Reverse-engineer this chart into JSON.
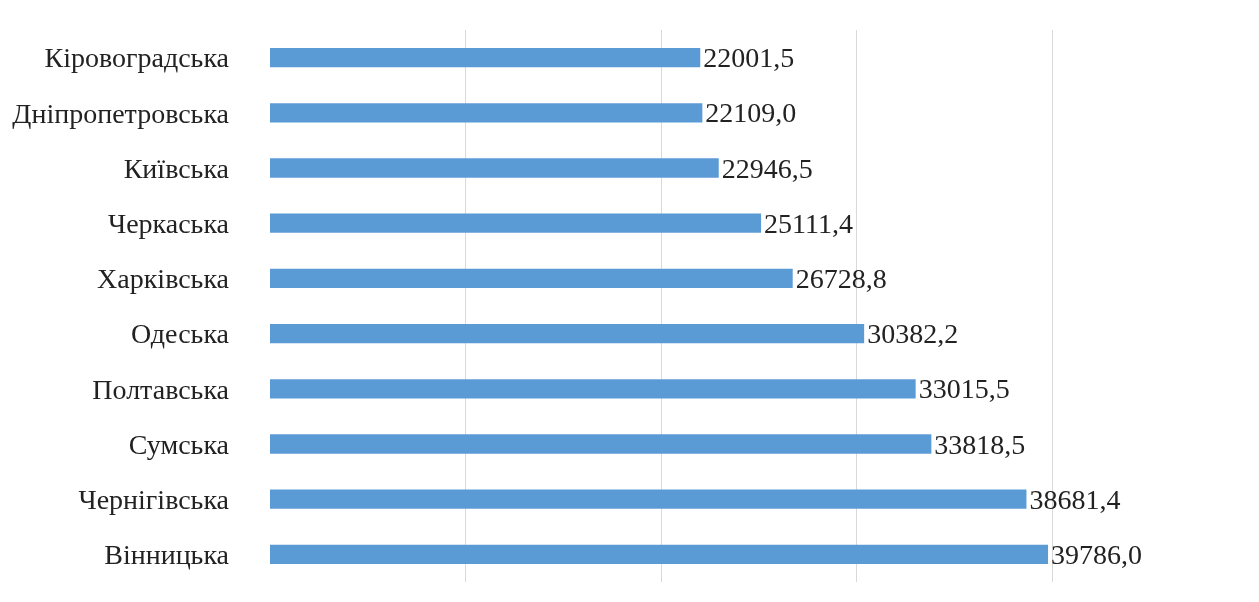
{
  "chart_data": {
    "type": "bar",
    "orientation": "horizontal",
    "categories": [
      "Кіровоградська",
      "Дніпропетровська",
      "Київська",
      "Черкаська",
      "Харківська",
      "Одеська",
      "Полтавська",
      "Сумська",
      "Чернігівська",
      "Вінницька"
    ],
    "values": [
      22001.5,
      22109.0,
      22946.5,
      25111.4,
      26728.8,
      30382.2,
      33015.5,
      33818.5,
      38681.4,
      39786.0
    ],
    "value_labels": [
      "22001,5",
      "22109,0",
      "22946,5",
      "25111,4",
      "26728,8",
      "30382,2",
      "33015,5",
      "33818,5",
      "38681,4",
      "39786,0"
    ],
    "color": "#5b9bd5",
    "grid": "x",
    "tick_labels": "y",
    "legend": false
  }
}
